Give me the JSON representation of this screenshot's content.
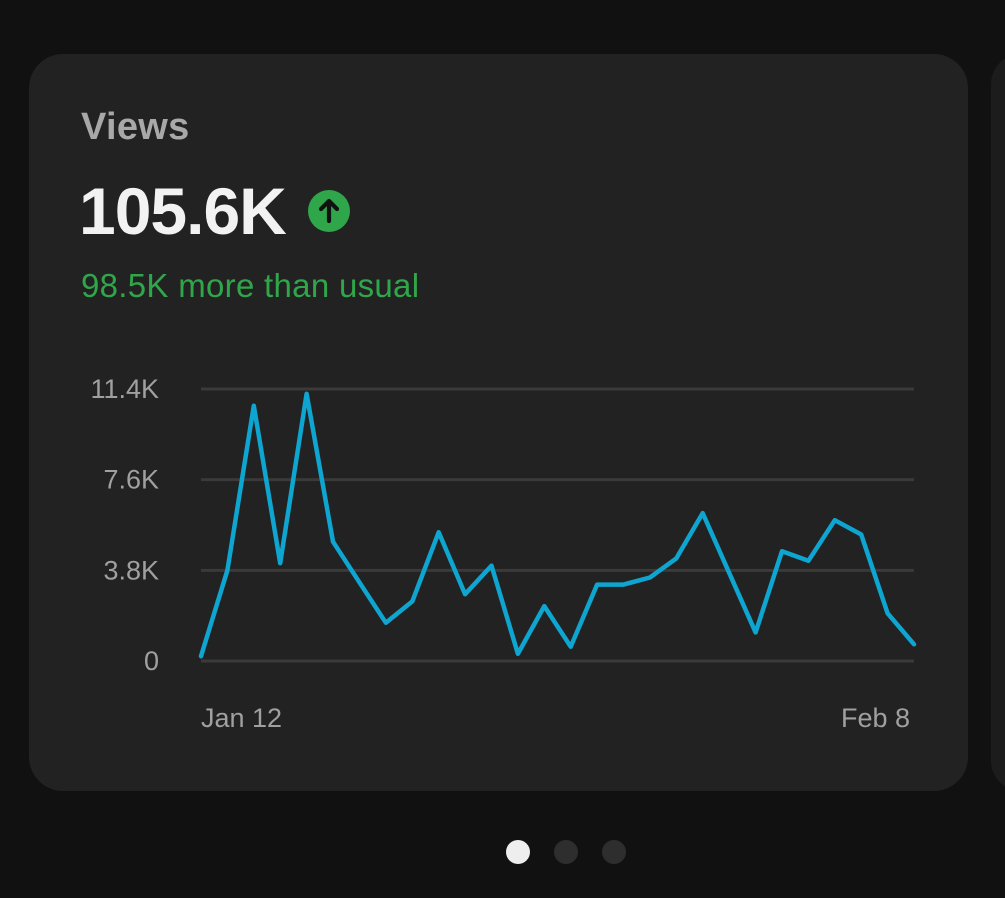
{
  "card": {
    "label": "Views",
    "value": "105.6K",
    "trend_icon": "arrow-up-circle-icon",
    "delta_text": "98.5K more than usual"
  },
  "colors": {
    "background": "#111111",
    "card": "#222222",
    "label": "#a8a8a8",
    "value": "#f2f2f2",
    "positive": "#30a64a",
    "line": "#0ea5d0",
    "grid": "#3a3a3a",
    "axis_text": "#a0a0a0"
  },
  "chart_data": {
    "type": "line",
    "title": "",
    "xlabel": "",
    "ylabel": "",
    "ylim": [
      0,
      11400
    ],
    "yticks": [
      "0",
      "3.8K",
      "7.6K",
      "11.4K"
    ],
    "ytick_values": [
      0,
      3800,
      7600,
      11400
    ],
    "xtick_labels": [
      "Jan 12",
      "Feb 8"
    ],
    "grid": true,
    "series": [
      {
        "values": [
          200,
          3800,
          10700,
          4100,
          11200,
          5000,
          3300,
          1600,
          2500,
          5400,
          2800,
          4000,
          300,
          2300,
          600,
          3200,
          3200,
          3500,
          4300,
          6200,
          3700,
          1200,
          4600,
          4200,
          5900,
          5300,
          2000,
          700
        ]
      }
    ]
  },
  "pager": {
    "pages": 3,
    "active_index": 0
  }
}
